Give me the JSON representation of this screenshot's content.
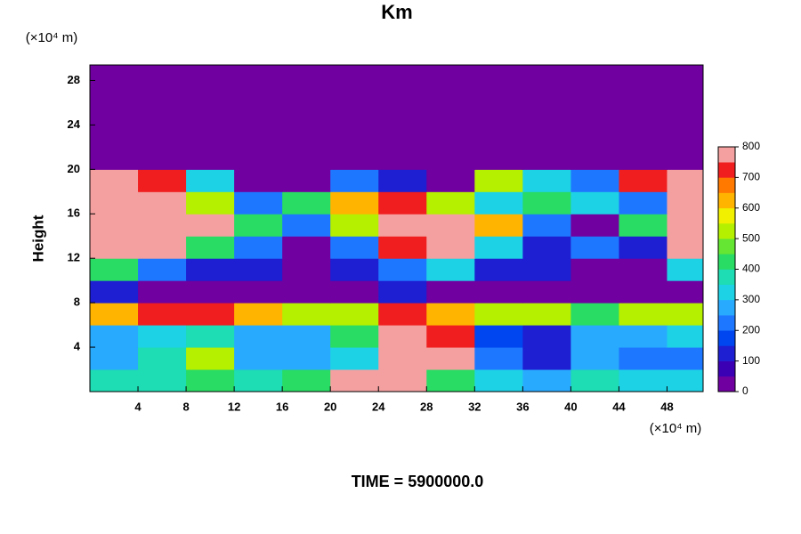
{
  "chart_data": {
    "type": "heatmap",
    "title": "Km",
    "y_label": "Height",
    "y_unit": "(×10⁴ m)",
    "x_unit": "(×10⁴ m)",
    "footer": "TIME = 5900000.0",
    "xlim": [
      0,
      51
    ],
    "ylim": [
      0,
      29.4
    ],
    "xticks": [
      4,
      8,
      12,
      16,
      20,
      24,
      28,
      32,
      36,
      40,
      44,
      48
    ],
    "yticks": [
      4,
      8,
      12,
      16,
      20,
      24,
      28
    ],
    "x": [
      2,
      6,
      10,
      14,
      18,
      22,
      26,
      30,
      34,
      38,
      42,
      46,
      50
    ],
    "y": [
      1,
      3,
      5,
      7,
      9,
      11,
      13,
      15,
      17,
      19,
      21,
      23,
      25,
      27,
      29
    ],
    "z": [
      [
        350,
        350,
        400,
        350,
        400,
        800,
        800,
        400,
        300,
        250,
        350,
        300,
        300
      ],
      [
        250,
        350,
        500,
        250,
        250,
        300,
        800,
        800,
        200,
        100,
        250,
        200,
        200
      ],
      [
        250,
        300,
        350,
        250,
        250,
        400,
        800,
        700,
        150,
        100,
        250,
        250,
        300
      ],
      [
        600,
        700,
        700,
        600,
        500,
        500,
        700,
        600,
        500,
        500,
        400,
        500,
        500
      ],
      [
        100,
        0,
        0,
        0,
        0,
        0,
        100,
        0,
        0,
        0,
        0,
        0,
        0
      ],
      [
        400,
        200,
        100,
        100,
        0,
        100,
        200,
        300,
        100,
        100,
        0,
        0,
        300
      ],
      [
        800,
        800,
        400,
        200,
        0,
        200,
        700,
        800,
        300,
        100,
        200,
        100,
        800
      ],
      [
        800,
        800,
        800,
        400,
        200,
        500,
        800,
        800,
        600,
        200,
        0,
        400,
        800
      ],
      [
        800,
        800,
        500,
        200,
        400,
        600,
        700,
        500,
        300,
        400,
        300,
        200,
        800
      ],
      [
        800,
        700,
        300,
        0,
        0,
        200,
        100,
        0,
        500,
        300,
        200,
        700,
        800
      ],
      [
        0,
        0,
        0,
        0,
        0,
        0,
        0,
        0,
        0,
        0,
        0,
        0,
        0
      ],
      [
        0,
        0,
        0,
        0,
        0,
        0,
        0,
        0,
        0,
        0,
        0,
        0,
        0
      ],
      [
        0,
        0,
        0,
        0,
        0,
        0,
        0,
        0,
        0,
        0,
        0,
        0,
        0
      ],
      [
        0,
        0,
        0,
        0,
        0,
        0,
        0,
        0,
        0,
        0,
        0,
        0,
        0
      ],
      [
        0,
        0,
        0,
        0,
        0,
        0,
        0,
        0,
        0,
        0,
        0,
        0,
        0
      ]
    ],
    "clim": [
      0,
      800
    ],
    "cticks": [
      0,
      100,
      200,
      300,
      400,
      500,
      600,
      700,
      800
    ],
    "colors": [
      "#7000a0",
      "#3c00b4",
      "#1e1ed2",
      "#0046f0",
      "#1e78ff",
      "#28aaff",
      "#1ed2e6",
      "#1edcb4",
      "#28dc64",
      "#64e632",
      "#b4f000",
      "#f0f000",
      "#ffb400",
      "#ff7800",
      "#f01e1e",
      "#f4a0a0"
    ]
  }
}
